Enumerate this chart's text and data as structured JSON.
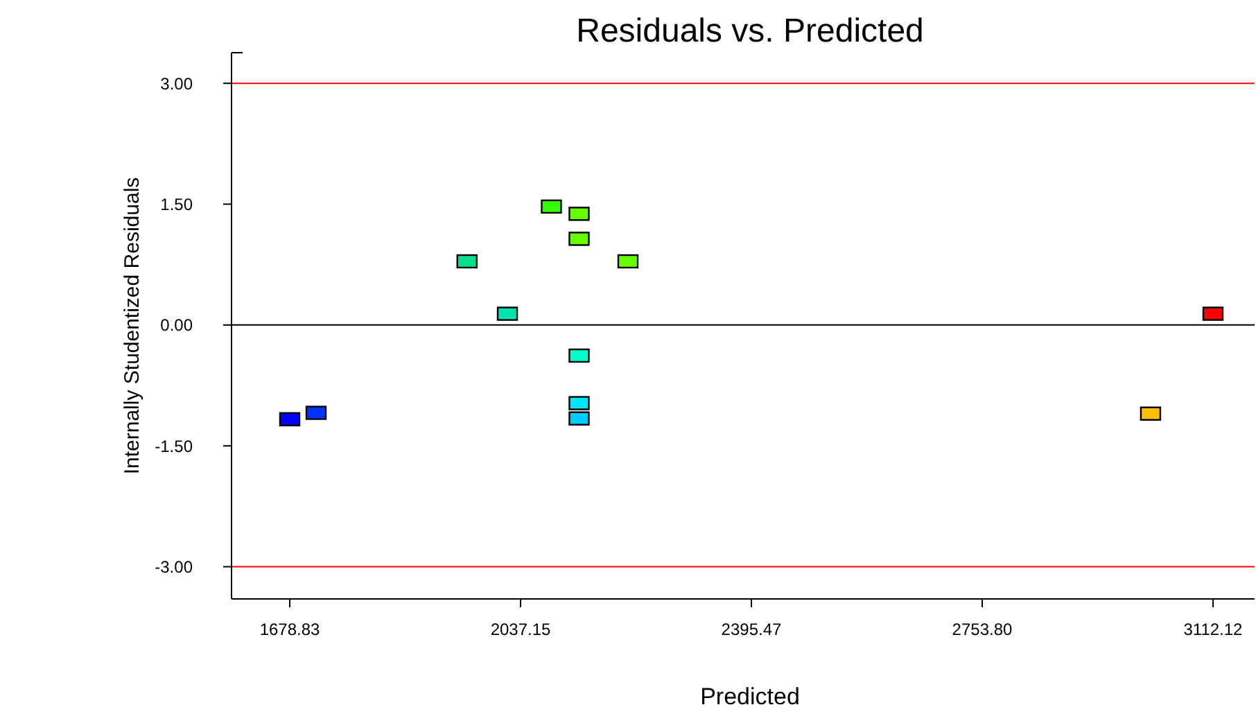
{
  "chart_data": {
    "type": "scatter",
    "title": "Residuals vs. Predicted",
    "xlabel": "Predicted",
    "ylabel": "Internally Studentized Residuals",
    "x": [
      1678.8,
      1719.7,
      1954,
      2016.7,
      2085,
      2128,
      2128,
      2203.9,
      2128,
      2128,
      2128,
      3015.2,
      3112.1
    ],
    "series": [
      {
        "values": [
          -1.17,
          -1.09,
          0.79,
          0.14,
          1.47,
          1.38,
          1.07,
          0.79,
          -0.38,
          -0.97,
          -1.16,
          -1.1,
          0.14
        ],
        "colors": [
          "#0000ff",
          "#0033ff",
          "#00e08a",
          "#00e0b0",
          "#33ff00",
          "#66ff00",
          "#66ff00",
          "#66ff00",
          "#00ffcc",
          "#00e5ff",
          "#00ccff",
          "#ffc000",
          "#ff0000"
        ]
      }
    ],
    "marker": "square",
    "xlim": [
      1588.4,
      3176.7
    ],
    "ylim": [
      -3.4,
      3.38
    ],
    "xticks": [
      1678.83,
      2037.15,
      2395.47,
      {
        "value": 2753.8,
        "label": "2753.80"
      },
      3112.12
    ],
    "yticks": [
      {
        "value": -3,
        "label": "-3.00"
      },
      {
        "value": -1.5,
        "label": "-1.50"
      },
      {
        "value": 0,
        "label": "0.00"
      },
      {
        "value": 1.5,
        "label": "1.50"
      },
      {
        "value": 3,
        "label": "3.00"
      }
    ],
    "ref_lines": [
      {
        "axis": "y",
        "value": 3,
        "color": "#ff0000"
      },
      {
        "axis": "y",
        "value": 0,
        "color": "#000000"
      },
      {
        "axis": "y",
        "value": -3,
        "color": "#ff0000"
      }
    ],
    "grid": false
  }
}
